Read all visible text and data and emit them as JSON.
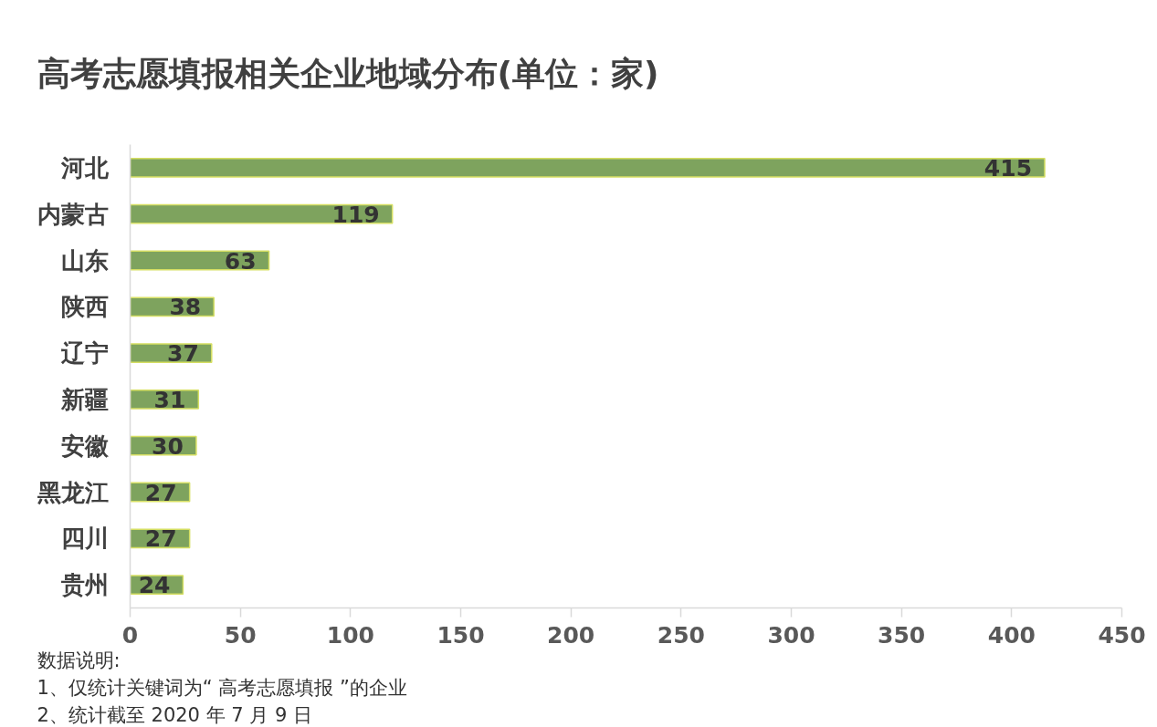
{
  "chart_data": {
    "type": "bar",
    "orientation": "horizontal",
    "title": "高考志愿填报相关企业地域分布(单位：家)",
    "categories": [
      "河北",
      "内蒙古",
      "山东",
      "陕西",
      "辽宁",
      "新疆",
      "安徽",
      "黑龙江",
      "四川",
      "贵州"
    ],
    "values": [
      415,
      119,
      63,
      38,
      37,
      31,
      30,
      27,
      27,
      24
    ],
    "color": "#7ea35e",
    "xlim": [
      0,
      450
    ],
    "xticks": [
      0,
      50,
      100,
      150,
      200,
      250,
      300,
      350,
      400,
      450
    ],
    "data_labels": true,
    "annotations": [
      "数据说明:",
      "1、仅统计关键词为“ 高考志愿填报 ”的企业",
      "2、统计截至 2020 年 7 月 9 日"
    ]
  }
}
